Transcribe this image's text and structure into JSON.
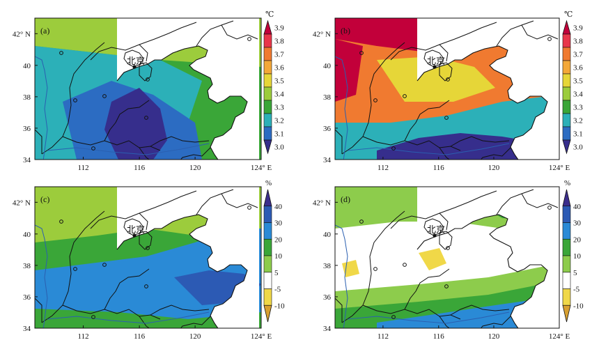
{
  "figure": {
    "axes": {
      "x_ticks": [
        "112",
        "116",
        "120",
        "124° E"
      ],
      "y_ticks": [
        "34",
        "36",
        "38",
        "40",
        "42° N"
      ]
    },
    "city_label": "北京",
    "colorbars": [
      {
        "unit": "℃",
        "labels": [
          "3.9",
          "3.8",
          "3.7",
          "3.6",
          "3.5",
          "3.4",
          "3.3",
          "3.2",
          "3.1",
          "3.0"
        ],
        "colors": [
          "#c2003a",
          "#e8364a",
          "#f07a30",
          "#f4a838",
          "#e6d638",
          "#9ccc3c",
          "#3aa638",
          "#2cb0b8",
          "#2c6cc2",
          "#362e8c"
        ]
      },
      {
        "unit": "%",
        "labels": [
          "40",
          "30",
          "20",
          "10",
          "5",
          "-5",
          "-10"
        ],
        "colors": [
          "#3c2e8c",
          "#2c5ab4",
          "#2a8ad6",
          "#3aa638",
          "#8dcc4c",
          "#ffffff",
          "#f0d848",
          "#d8a030"
        ]
      }
    ],
    "panels": [
      {
        "label": "(a)",
        "fill_colors": {
          "c1": "#3aa638",
          "c2": "#9ccc3c",
          "c3": "#2cb0b8",
          "c4": "#2c6cc2",
          "c5": "#362e8c"
        },
        "style": "temperature-moderate"
      },
      {
        "label": "(b)",
        "fill_colors": {
          "c1": "#c2003a",
          "c2": "#f07a30",
          "c3": "#e6d638",
          "c4": "#2cb0b8",
          "c5": "#362e8c"
        },
        "style": "temperature-strong"
      },
      {
        "label": "(c)",
        "fill_colors": {
          "c1": "#3aa638",
          "c2": "#9ccc3c",
          "c3": "#2a8ad6",
          "c4": "#2c5ab4",
          "c5": "#3c2e8c"
        },
        "style": "precipitation-moderate"
      },
      {
        "label": "(d)",
        "fill_colors": {
          "c1": "#ffffff",
          "c2": "#8dcc4c",
          "c3": "#3aa638",
          "c4": "#2a8ad6",
          "c5": "#f0d848"
        },
        "style": "precipitation-patchy"
      }
    ]
  }
}
